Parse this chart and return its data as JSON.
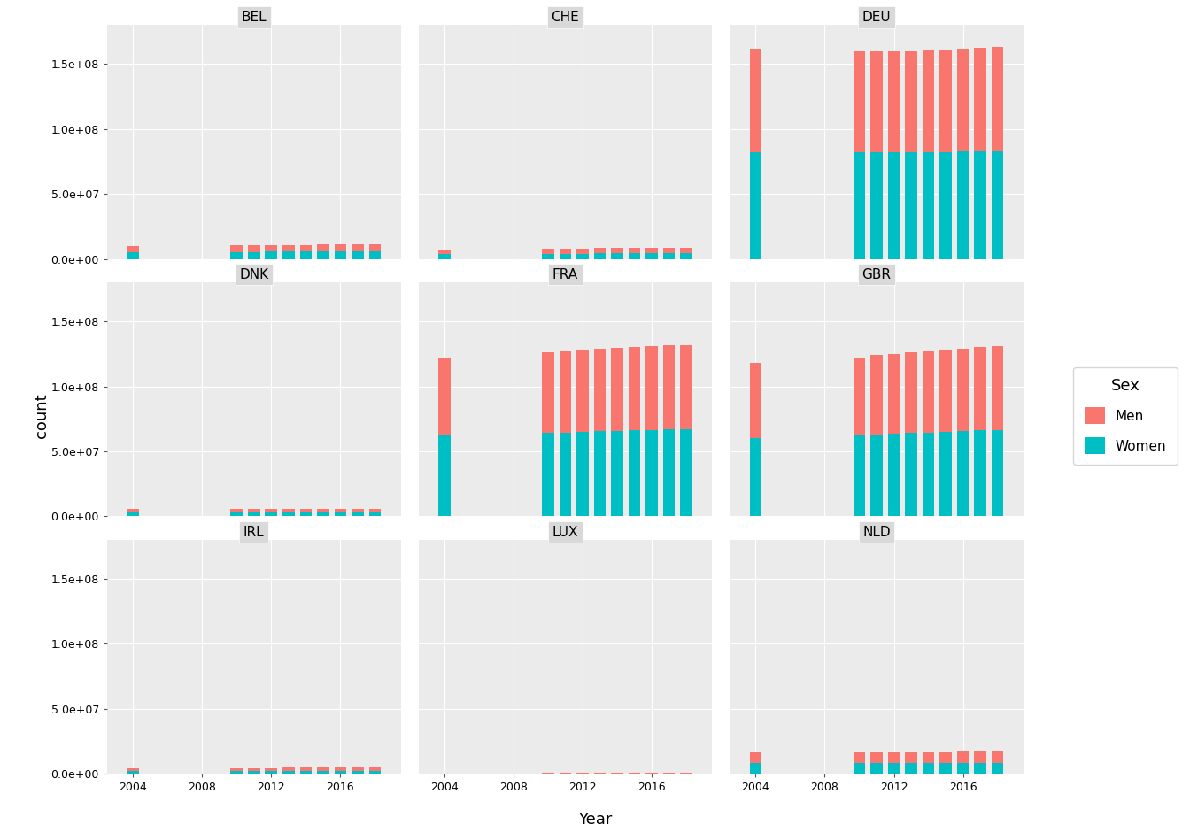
{
  "countries": [
    "BEL",
    "CHE",
    "DEU",
    "DNK",
    "FRA",
    "GBR",
    "IRL",
    "LUX",
    "NLD"
  ],
  "grid_rows": 3,
  "grid_cols": 3,
  "color_men": "#F8766D",
  "color_women": "#00BFC4",
  "background_panel": "#EBEBEB",
  "background_fig": "#FFFFFF",
  "grid_color": "#FFFFFF",
  "strip_bg": "#D9D9D9",
  "xlabel": "Year",
  "ylabel": "count",
  "ylim": [
    0,
    180000000.0
  ],
  "yticks": [
    0.0,
    50000000.0,
    100000000.0,
    150000000.0
  ],
  "data": {
    "BEL": {
      "years": [
        2004,
        2010,
        2011,
        2012,
        2013,
        2014,
        2015,
        2016,
        2017,
        2018
      ],
      "women": [
        5100000,
        5400000,
        5450000,
        5500000,
        5550000,
        5580000,
        5610000,
        5650000,
        5680000,
        5720000
      ],
      "men": [
        4900000,
        5200000,
        5250000,
        5300000,
        5330000,
        5360000,
        5380000,
        5420000,
        5450000,
        5480000
      ]
    },
    "CHE": {
      "years": [
        2004,
        2010,
        2011,
        2012,
        2013,
        2014,
        2015,
        2016,
        2017,
        2018
      ],
      "women": [
        3700000,
        4000000,
        4050000,
        4100000,
        4200000,
        4250000,
        4300000,
        4350000,
        4400000,
        4450000
      ],
      "men": [
        3600000,
        3850000,
        3900000,
        3950000,
        4050000,
        4100000,
        4150000,
        4200000,
        4250000,
        4280000
      ]
    },
    "DEU": {
      "years": [
        2004,
        2010,
        2011,
        2012,
        2013,
        2014,
        2015,
        2016,
        2017,
        2018
      ],
      "women": [
        82000000,
        82000000,
        82000000,
        82000000,
        82000000,
        82000000,
        82000000,
        82500000,
        82800000,
        83000000
      ],
      "men": [
        80000000,
        78000000,
        78000000,
        78000000,
        78000000,
        78500000,
        79000000,
        79500000,
        79800000,
        80000000
      ]
    },
    "DNK": {
      "years": [
        2004,
        2010,
        2011,
        2012,
        2013,
        2014,
        2015,
        2016,
        2017,
        2018
      ],
      "women": [
        2730000,
        2780000,
        2800000,
        2820000,
        2840000,
        2860000,
        2880000,
        2900000,
        2920000,
        2940000
      ],
      "men": [
        2700000,
        2750000,
        2760000,
        2780000,
        2800000,
        2820000,
        2840000,
        2860000,
        2870000,
        2880000
      ]
    },
    "FRA": {
      "years": [
        2004,
        2010,
        2011,
        2012,
        2013,
        2014,
        2015,
        2016,
        2017,
        2018
      ],
      "women": [
        62000000,
        64000000,
        64500000,
        65000000,
        65500000,
        65800000,
        66000000,
        66500000,
        66800000,
        67000000
      ],
      "men": [
        60000000,
        62000000,
        62500000,
        63000000,
        63500000,
        63800000,
        64000000,
        64500000,
        64800000,
        65000000
      ]
    },
    "GBR": {
      "years": [
        2004,
        2010,
        2011,
        2012,
        2013,
        2014,
        2015,
        2016,
        2017,
        2018
      ],
      "women": [
        60000000,
        62000000,
        63000000,
        63500000,
        64000000,
        64500000,
        65000000,
        65500000,
        66000000,
        66500000
      ],
      "men": [
        58000000,
        60000000,
        61000000,
        61500000,
        62000000,
        62500000,
        63000000,
        63500000,
        64000000,
        64500000
      ]
    },
    "IRL": {
      "years": [
        2004,
        2010,
        2011,
        2012,
        2013,
        2014,
        2015,
        2016,
        2017,
        2018
      ],
      "women": [
        2050000,
        2250000,
        2260000,
        2270000,
        2280000,
        2300000,
        2320000,
        2340000,
        2360000,
        2380000
      ],
      "men": [
        2050000,
        2280000,
        2280000,
        2290000,
        2290000,
        2310000,
        2330000,
        2350000,
        2370000,
        2390000
      ]
    },
    "LUX": {
      "years": [
        2004,
        2010,
        2011,
        2012,
        2013,
        2014,
        2015,
        2016,
        2017,
        2018
      ],
      "women": [
        235000,
        265000,
        270000,
        275000,
        280000,
        285000,
        290000,
        295000,
        300000,
        305000
      ],
      "men": [
        235000,
        265000,
        270000,
        275000,
        280000,
        285000,
        290000,
        295000,
        300000,
        305000
      ]
    },
    "NLD": {
      "years": [
        2004,
        2010,
        2011,
        2012,
        2013,
        2014,
        2015,
        2016,
        2017,
        2018
      ],
      "women": [
        8200000,
        8400000,
        8420000,
        8440000,
        8460000,
        8480000,
        8500000,
        8520000,
        8550000,
        8570000
      ],
      "men": [
        8200000,
        8200000,
        8220000,
        8240000,
        8260000,
        8280000,
        8300000,
        8320000,
        8350000,
        8370000
      ]
    }
  }
}
